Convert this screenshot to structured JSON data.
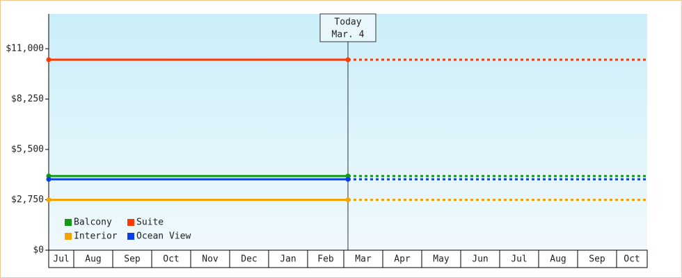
{
  "chart_data": {
    "type": "line",
    "categories": [
      "Jul",
      "Aug",
      "Sep",
      "Oct",
      "Nov",
      "Dec",
      "Jan",
      "Feb",
      "Mar",
      "Apr",
      "May",
      "Jun",
      "Jul",
      "Aug",
      "Sep",
      "Oct"
    ],
    "series": [
      {
        "name": "Balcony",
        "color": "#129b12",
        "value": 4050
      },
      {
        "name": "Suite",
        "color": "#ff3a00",
        "value": 10400
      },
      {
        "name": "Interior",
        "color": "#f5a300",
        "value": 2750
      },
      {
        "name": "Ocean View",
        "color": "#0a3ee8",
        "value": 3870
      }
    ],
    "ylim": [
      0,
      12900
    ],
    "yticks": [
      {
        "value": 0,
        "label": "$0"
      },
      {
        "value": 2750,
        "label": "$2,750"
      },
      {
        "value": 5500,
        "label": "$5,500"
      },
      {
        "value": 8250,
        "label": "$8,250"
      },
      {
        "value": 11000,
        "label": "$11,000"
      }
    ],
    "annotation": {
      "label": "Today",
      "date": "Mar. 4"
    },
    "legend": "bottom-left"
  }
}
